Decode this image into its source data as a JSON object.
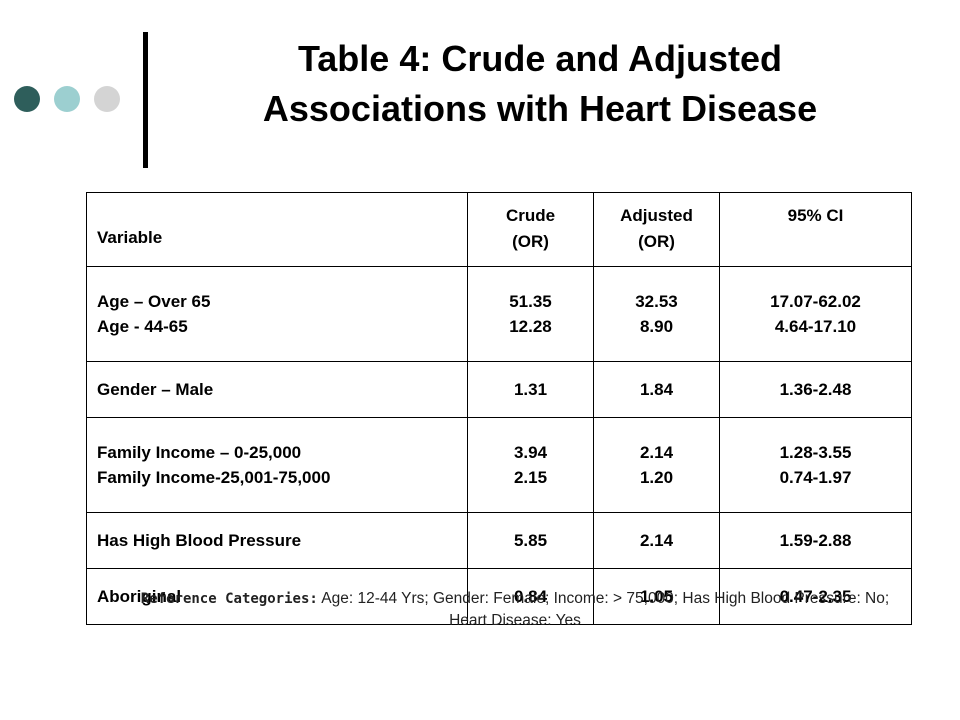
{
  "colors": {
    "dot_dark": "#2e5e5b",
    "dot_teal": "#9ccfd0",
    "dot_light": "#d4d4d4"
  },
  "decor": {
    "left_dots": "three circles",
    "title_rule": "vertical bar"
  },
  "slide": {
    "title_line1": "Table 4: Crude and Adjusted",
    "title_line2": "Associations with Heart Disease"
  },
  "table": {
    "headers": {
      "variable": "Variable",
      "crude": [
        "Crude",
        "(OR)"
      ],
      "adjusted": [
        "Adjusted",
        "(OR)"
      ],
      "ci": "95% CI"
    },
    "rows": [
      {
        "variable": [
          "Age – Over 65",
          "Age - 44-65"
        ],
        "crude": [
          "51.35",
          "12.28"
        ],
        "adjusted": [
          "32.53",
          "8.90"
        ],
        "ci": [
          "17.07-62.02",
          "4.64-17.10"
        ]
      },
      {
        "variable": [
          "Gender – Male"
        ],
        "crude": [
          "1.31"
        ],
        "adjusted": [
          "1.84"
        ],
        "ci": [
          "1.36-2.48"
        ]
      },
      {
        "variable": [
          "Family Income – 0-25,000",
          "Family Income-25,001-75,000"
        ],
        "crude": [
          "3.94",
          "2.15"
        ],
        "adjusted": [
          "2.14",
          "1.20"
        ],
        "ci": [
          "1.28-3.55",
          "0.74-1.97"
        ]
      },
      {
        "variable": [
          "Has High Blood Pressure"
        ],
        "crude": [
          "5.85"
        ],
        "adjusted": [
          "2.14"
        ],
        "ci": [
          "1.59-2.88"
        ]
      },
      {
        "variable": [
          "Aboriginal"
        ],
        "crude": [
          "0.84"
        ],
        "adjusted": [
          "1.05"
        ],
        "ci": [
          "0.47-2.35"
        ]
      }
    ]
  },
  "footnote": {
    "label": "Reference Categories:",
    "text": " Age: 12-44 Yrs; Gender: Female; Income: > 75,000; Has High Blood Pressure: No; Heart Disease: Yes"
  }
}
